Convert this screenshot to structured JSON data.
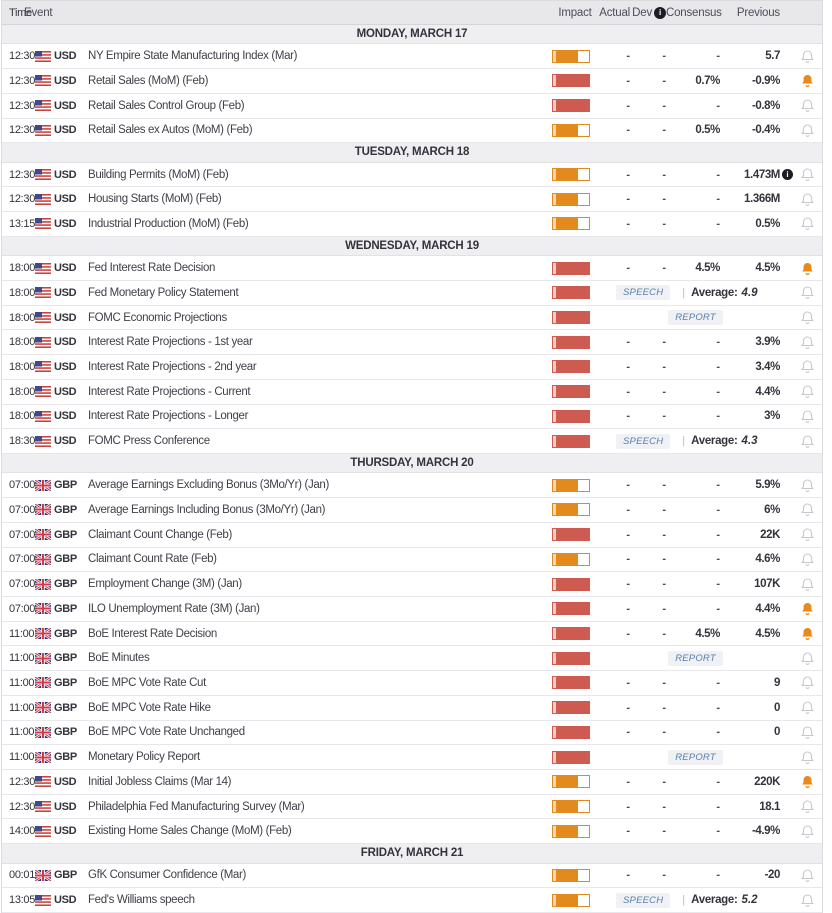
{
  "columns": {
    "time": "Time",
    "event": "Event",
    "impact": "Impact",
    "actual": "Actual",
    "dev": "Dev",
    "consensus": "Consensus",
    "previous": "Previous"
  },
  "colors": {
    "impact_high": "#cd5b50",
    "impact_medium": "#e28a1e",
    "bell_active": "#e8891a",
    "bell_inactive": "#c7c7cd",
    "badge_text": "#5b7fae",
    "header_bg": "#e8e8eb",
    "day_bg": "#efeff2"
  },
  "days": [
    {
      "label": "MONDAY, MARCH 17",
      "events": [
        {
          "time": "12:30",
          "flag": "us",
          "currency": "USD",
          "name": "NY Empire State Manufacturing Index (Mar)",
          "impact": "medium",
          "actual": "-",
          "dev": "-",
          "consensus": "-",
          "previous": "5.7",
          "bell": "off"
        },
        {
          "time": "12:30",
          "flag": "us",
          "currency": "USD",
          "name": "Retail Sales (MoM) (Feb)",
          "impact": "high",
          "actual": "-",
          "dev": "-",
          "consensus": "0.7%",
          "previous": "-0.9%",
          "bell": "on"
        },
        {
          "time": "12:30",
          "flag": "us",
          "currency": "USD",
          "name": "Retail Sales Control Group (Feb)",
          "impact": "high",
          "actual": "-",
          "dev": "-",
          "consensus": "-",
          "previous": "-0.8%",
          "bell": "off"
        },
        {
          "time": "12:30",
          "flag": "us",
          "currency": "USD",
          "name": "Retail Sales ex Autos (MoM) (Feb)",
          "impact": "medium",
          "actual": "-",
          "dev": "-",
          "consensus": "0.5%",
          "previous": "-0.4%",
          "bell": "off"
        }
      ]
    },
    {
      "label": "TUESDAY, MARCH 18",
      "events": [
        {
          "time": "12:30",
          "flag": "us",
          "currency": "USD",
          "name": "Building Permits (MoM) (Feb)",
          "impact": "medium",
          "actual": "-",
          "dev": "-",
          "consensus": "-",
          "previous": "1.473M",
          "previous_info": true,
          "bell": "off"
        },
        {
          "time": "12:30",
          "flag": "us",
          "currency": "USD",
          "name": "Housing Starts (MoM) (Feb)",
          "impact": "medium",
          "actual": "-",
          "dev": "-",
          "consensus": "-",
          "previous": "1.366M",
          "bell": "off"
        },
        {
          "time": "13:15",
          "flag": "us",
          "currency": "USD",
          "name": "Industrial Production (MoM) (Feb)",
          "impact": "medium",
          "actual": "-",
          "dev": "-",
          "consensus": "-",
          "previous": "0.5%",
          "bell": "off"
        }
      ]
    },
    {
      "label": "WEDNESDAY, MARCH 19",
      "events": [
        {
          "time": "18:00",
          "flag": "us",
          "currency": "USD",
          "name": "Fed Interest Rate Decision",
          "impact": "high",
          "actual": "-",
          "dev": "-",
          "consensus": "4.5%",
          "previous": "4.5%",
          "bell": "on"
        },
        {
          "time": "18:00",
          "flag": "us",
          "currency": "USD",
          "name": "Fed Monetary Policy Statement",
          "impact": "high",
          "badge": "SPEECH",
          "average_label": "Average:",
          "average_value": "4.9",
          "bell": "off"
        },
        {
          "time": "18:00",
          "flag": "us",
          "currency": "USD",
          "name": "FOMC Economic Projections",
          "impact": "high",
          "badge": "REPORT",
          "bell": "off"
        },
        {
          "time": "18:00",
          "flag": "us",
          "currency": "USD",
          "name": "Interest Rate Projections - 1st year",
          "impact": "high",
          "actual": "-",
          "dev": "-",
          "consensus": "-",
          "previous": "3.9%",
          "bell": "off"
        },
        {
          "time": "18:00",
          "flag": "us",
          "currency": "USD",
          "name": "Interest Rate Projections - 2nd year",
          "impact": "high",
          "actual": "-",
          "dev": "-",
          "consensus": "-",
          "previous": "3.4%",
          "bell": "off"
        },
        {
          "time": "18:00",
          "flag": "us",
          "currency": "USD",
          "name": "Interest Rate Projections - Current",
          "impact": "high",
          "actual": "-",
          "dev": "-",
          "consensus": "-",
          "previous": "4.4%",
          "bell": "off"
        },
        {
          "time": "18:00",
          "flag": "us",
          "currency": "USD",
          "name": "Interest Rate Projections - Longer",
          "impact": "high",
          "actual": "-",
          "dev": "-",
          "consensus": "-",
          "previous": "3%",
          "bell": "off"
        },
        {
          "time": "18:30",
          "flag": "us",
          "currency": "USD",
          "name": "FOMC Press Conference",
          "impact": "high",
          "badge": "SPEECH",
          "average_label": "Average:",
          "average_value": "4.3",
          "bell": "off"
        }
      ]
    },
    {
      "label": "THURSDAY, MARCH 20",
      "events": [
        {
          "time": "07:00",
          "flag": "gb",
          "currency": "GBP",
          "name": "Average Earnings Excluding Bonus (3Mo/Yr) (Jan)",
          "impact": "medium",
          "actual": "-",
          "dev": "-",
          "consensus": "-",
          "previous": "5.9%",
          "bell": "off"
        },
        {
          "time": "07:00",
          "flag": "gb",
          "currency": "GBP",
          "name": "Average Earnings Including Bonus (3Mo/Yr) (Jan)",
          "impact": "medium",
          "actual": "-",
          "dev": "-",
          "consensus": "-",
          "previous": "6%",
          "bell": "off"
        },
        {
          "time": "07:00",
          "flag": "gb",
          "currency": "GBP",
          "name": "Claimant Count Change (Feb)",
          "impact": "high",
          "actual": "-",
          "dev": "-",
          "consensus": "-",
          "previous": "22K",
          "bell": "off"
        },
        {
          "time": "07:00",
          "flag": "gb",
          "currency": "GBP",
          "name": "Claimant Count Rate (Feb)",
          "impact": "medium",
          "actual": "-",
          "dev": "-",
          "consensus": "-",
          "previous": "4.6%",
          "bell": "off"
        },
        {
          "time": "07:00",
          "flag": "gb",
          "currency": "GBP",
          "name": "Employment Change (3M) (Jan)",
          "impact": "high",
          "actual": "-",
          "dev": "-",
          "consensus": "-",
          "previous": "107K",
          "bell": "off"
        },
        {
          "time": "07:00",
          "flag": "gb",
          "currency": "GBP",
          "name": "ILO Unemployment Rate (3M) (Jan)",
          "impact": "high",
          "actual": "-",
          "dev": "-",
          "consensus": "-",
          "previous": "4.4%",
          "bell": "on"
        },
        {
          "time": "11:00",
          "flag": "gb",
          "currency": "GBP",
          "name": "BoE Interest Rate Decision",
          "impact": "high",
          "actual": "-",
          "dev": "-",
          "consensus": "4.5%",
          "previous": "4.5%",
          "bell": "on"
        },
        {
          "time": "11:00",
          "flag": "gb",
          "currency": "GBP",
          "name": "BoE Minutes",
          "impact": "high",
          "badge": "REPORT",
          "bell": "off"
        },
        {
          "time": "11:00",
          "flag": "gb",
          "currency": "GBP",
          "name": "BoE MPC Vote Rate Cut",
          "impact": "high",
          "actual": "-",
          "dev": "-",
          "consensus": "-",
          "previous": "9",
          "bell": "off"
        },
        {
          "time": "11:00",
          "flag": "gb",
          "currency": "GBP",
          "name": "BoE MPC Vote Rate Hike",
          "impact": "high",
          "actual": "-",
          "dev": "-",
          "consensus": "-",
          "previous": "0",
          "bell": "off"
        },
        {
          "time": "11:00",
          "flag": "gb",
          "currency": "GBP",
          "name": "BoE MPC Vote Rate Unchanged",
          "impact": "high",
          "actual": "-",
          "dev": "-",
          "consensus": "-",
          "previous": "0",
          "bell": "off"
        },
        {
          "time": "11:00",
          "flag": "gb",
          "currency": "GBP",
          "name": "Monetary Policy Report",
          "impact": "high",
          "badge": "REPORT",
          "bell": "off"
        },
        {
          "time": "12:30",
          "flag": "us",
          "currency": "USD",
          "name": "Initial Jobless Claims (Mar 14)",
          "impact": "medium",
          "actual": "-",
          "dev": "-",
          "consensus": "-",
          "previous": "220K",
          "bell": "on"
        },
        {
          "time": "12:30",
          "flag": "us",
          "currency": "USD",
          "name": "Philadelphia Fed Manufacturing Survey (Mar)",
          "impact": "medium",
          "actual": "-",
          "dev": "-",
          "consensus": "-",
          "previous": "18.1",
          "bell": "off"
        },
        {
          "time": "14:00",
          "flag": "us",
          "currency": "USD",
          "name": "Existing Home Sales Change (MoM) (Feb)",
          "impact": "medium",
          "actual": "-",
          "dev": "-",
          "consensus": "-",
          "previous": "-4.9%",
          "bell": "off"
        }
      ]
    },
    {
      "label": "FRIDAY, MARCH 21",
      "events": [
        {
          "time": "00:01",
          "flag": "gb",
          "currency": "GBP",
          "name": "GfK Consumer Confidence (Mar)",
          "impact": "medium",
          "actual": "-",
          "dev": "-",
          "consensus": "-",
          "previous": "-20",
          "bell": "off"
        },
        {
          "time": "13:05",
          "flag": "us",
          "currency": "USD",
          "name": "Fed's Williams speech",
          "impact": "medium",
          "badge": "SPEECH",
          "average_label": "Average:",
          "average_value": "5.2",
          "bell": "off"
        }
      ]
    }
  ]
}
